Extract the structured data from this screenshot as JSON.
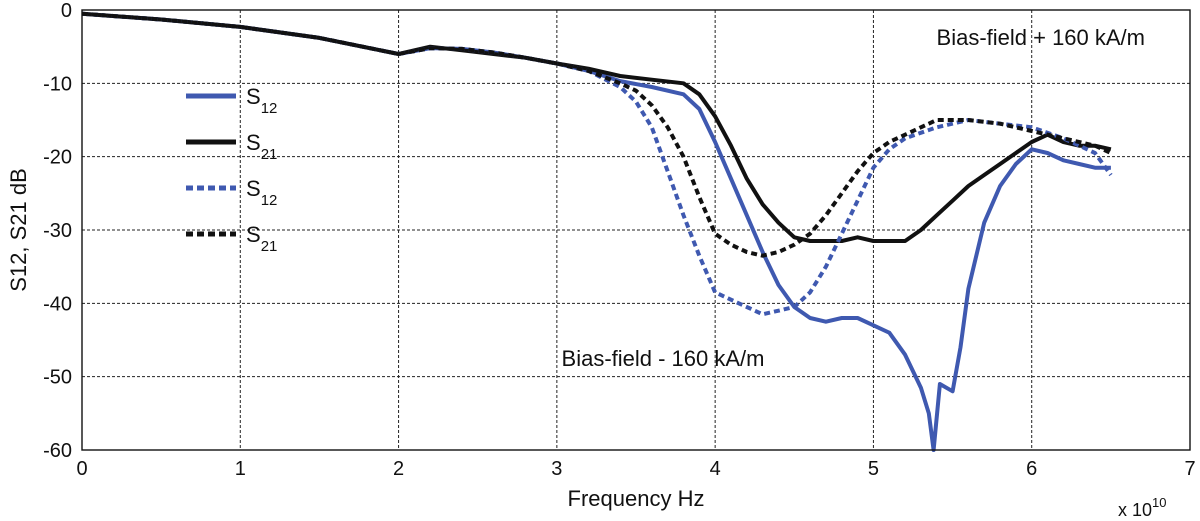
{
  "chart_data": {
    "type": "line",
    "title": "",
    "xlabel": "Frequency Hz",
    "ylabel": "S12, S21 dB",
    "x_multiplier": {
      "base": "x 10",
      "exponent": "10"
    },
    "xlim": [
      0,
      7
    ],
    "ylim": [
      -60,
      0
    ],
    "xticks": [
      0,
      1,
      2,
      3,
      4,
      5,
      6,
      7
    ],
    "yticks": [
      0,
      -10,
      -20,
      -30,
      -40,
      -50,
      -60
    ],
    "grid": true,
    "legend_position": "upper-left",
    "annotations": [
      "Bias-field + 160 kA/m",
      "Bias-field - 160 kA/m"
    ],
    "series": [
      {
        "name": "S12",
        "legend_main": "S",
        "legend_sub": "12",
        "color": "#3f59b0",
        "style": "solid",
        "x": [
          0,
          0.5,
          1.0,
          1.5,
          2.0,
          2.2,
          2.4,
          2.6,
          2.8,
          3.0,
          3.2,
          3.4,
          3.6,
          3.8,
          3.9,
          4.0,
          4.1,
          4.2,
          4.3,
          4.4,
          4.5,
          4.6,
          4.7,
          4.8,
          4.9,
          5.0,
          5.1,
          5.2,
          5.3,
          5.35,
          5.38,
          5.42,
          5.5,
          5.55,
          5.6,
          5.7,
          5.8,
          5.9,
          6.0,
          6.1,
          6.2,
          6.3,
          6.4,
          6.5
        ],
        "y": [
          -0.5,
          -1.3,
          -2.3,
          -3.8,
          -6.0,
          -5.2,
          -5.3,
          -5.8,
          -6.5,
          -7.3,
          -8.3,
          -9.7,
          -10.5,
          -11.5,
          -13.5,
          -18.0,
          -23.0,
          -28.0,
          -33.0,
          -37.5,
          -40.5,
          -42.0,
          -42.5,
          -42.0,
          -42.0,
          -43.0,
          -44.0,
          -47.0,
          -51.5,
          -55.0,
          -60.0,
          -51.0,
          -52.0,
          -46.0,
          -38.0,
          -29.0,
          -24.0,
          -21.0,
          -19.0,
          -19.5,
          -20.5,
          -21.0,
          -21.5,
          -21.5
        ]
      },
      {
        "name": "S21",
        "legend_main": "S",
        "legend_sub": "21",
        "color": "#111111",
        "style": "solid",
        "x": [
          0,
          0.5,
          1.0,
          1.5,
          2.0,
          2.2,
          2.4,
          2.6,
          2.8,
          3.0,
          3.2,
          3.4,
          3.6,
          3.8,
          3.9,
          4.0,
          4.1,
          4.2,
          4.3,
          4.4,
          4.5,
          4.6,
          4.7,
          4.8,
          4.9,
          5.0,
          5.1,
          5.2,
          5.3,
          5.4,
          5.5,
          5.6,
          5.7,
          5.8,
          5.9,
          6.0,
          6.1,
          6.2,
          6.3,
          6.4,
          6.5
        ],
        "y": [
          -0.5,
          -1.3,
          -2.3,
          -3.8,
          -6.0,
          -5.0,
          -5.5,
          -6.0,
          -6.5,
          -7.3,
          -8.0,
          -9.0,
          -9.5,
          -10.0,
          -11.5,
          -14.5,
          -18.5,
          -23.0,
          -26.5,
          -29.0,
          -31.0,
          -31.5,
          -31.5,
          -31.5,
          -31.0,
          -31.5,
          -31.5,
          -31.5,
          -30.0,
          -28.0,
          -26.0,
          -24.0,
          -22.5,
          -21.0,
          -19.5,
          -18.0,
          -17.0,
          -18.0,
          -18.5,
          -18.5,
          -19.0
        ]
      },
      {
        "name": "S12",
        "legend_main": "S",
        "legend_sub": "12",
        "color": "#3f59b0",
        "style": "dotted",
        "x": [
          0,
          0.5,
          1.0,
          1.5,
          2.0,
          2.2,
          2.4,
          2.6,
          2.8,
          3.0,
          3.2,
          3.4,
          3.5,
          3.6,
          3.7,
          3.8,
          3.9,
          4.0,
          4.1,
          4.2,
          4.3,
          4.4,
          4.5,
          4.6,
          4.7,
          4.8,
          4.9,
          5.0,
          5.1,
          5.2,
          5.4,
          5.6,
          5.8,
          6.0,
          6.2,
          6.4,
          6.5
        ],
        "y": [
          -0.5,
          -1.3,
          -2.3,
          -3.8,
          -6.0,
          -5.2,
          -5.3,
          -5.8,
          -6.5,
          -7.3,
          -8.3,
          -10.5,
          -12.5,
          -16.0,
          -22.0,
          -28.0,
          -33.5,
          -38.5,
          -39.5,
          -40.5,
          -41.5,
          -41.0,
          -40.5,
          -38.5,
          -35.0,
          -30.5,
          -26.0,
          -21.5,
          -19.0,
          -17.5,
          -16.0,
          -15.0,
          -15.5,
          -16.0,
          -17.5,
          -19.5,
          -22.5
        ]
      },
      {
        "name": "S21",
        "legend_main": "S",
        "legend_sub": "21",
        "color": "#111111",
        "style": "dotted",
        "x": [
          0,
          0.5,
          1.0,
          1.5,
          2.0,
          2.2,
          2.4,
          2.6,
          2.8,
          3.0,
          3.2,
          3.4,
          3.5,
          3.6,
          3.7,
          3.8,
          3.9,
          4.0,
          4.1,
          4.2,
          4.3,
          4.4,
          4.5,
          4.6,
          4.7,
          4.8,
          4.9,
          5.0,
          5.1,
          5.2,
          5.3,
          5.4,
          5.6,
          5.8,
          6.0,
          6.2,
          6.4,
          6.5
        ],
        "y": [
          -0.5,
          -1.3,
          -2.3,
          -3.8,
          -6.0,
          -5.2,
          -5.3,
          -5.8,
          -6.5,
          -7.3,
          -8.3,
          -10.0,
          -11.0,
          -13.0,
          -16.0,
          -20.0,
          -25.5,
          -30.5,
          -32.0,
          -33.0,
          -33.5,
          -33.0,
          -32.0,
          -30.5,
          -28.0,
          -25.0,
          -22.0,
          -19.5,
          -18.0,
          -17.0,
          -16.0,
          -15.0,
          -15.0,
          -15.5,
          -16.5,
          -17.5,
          -18.5,
          -19.5
        ]
      }
    ]
  }
}
